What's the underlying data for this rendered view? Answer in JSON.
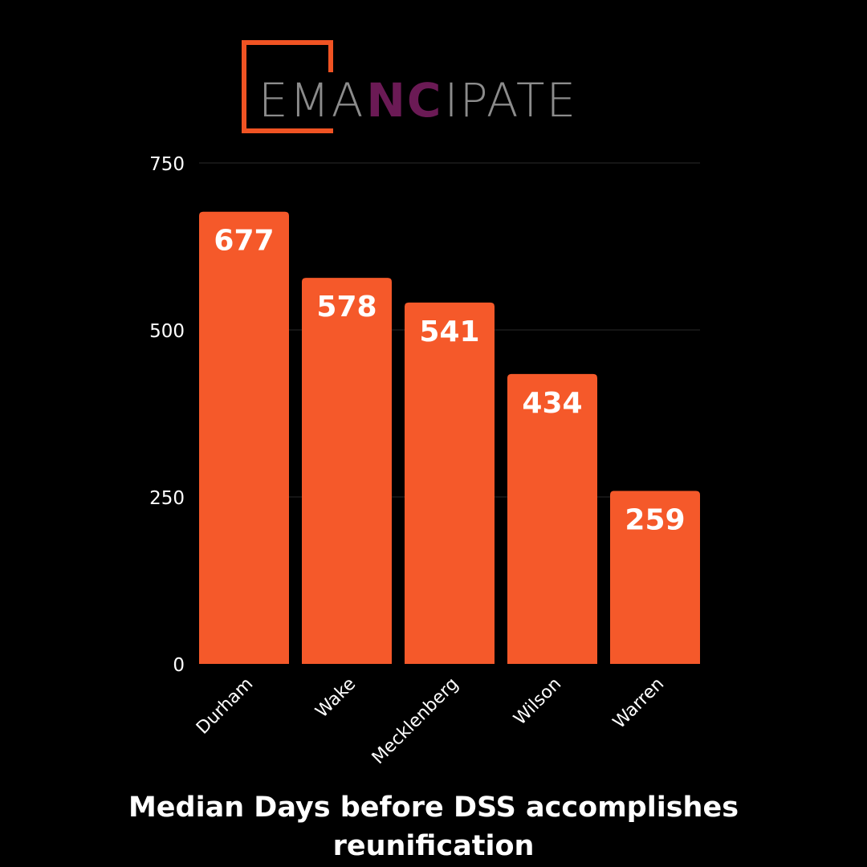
{
  "logo": {
    "part1": "EMA",
    "part2": "NC",
    "part3": "IPATE",
    "colors": {
      "bracket": "#F05323",
      "gray": "#8c8c8c",
      "accent": "#6b1a55"
    }
  },
  "chart_data": {
    "type": "bar",
    "title": "Median Days before DSS accomplishes reunification",
    "categories": [
      "Durham",
      "Wake",
      "Mecklenberg",
      "Wilson",
      "Warren"
    ],
    "values": [
      677,
      578,
      541,
      434,
      259
    ],
    "ylim": [
      0,
      750
    ],
    "yticks": [
      0,
      250,
      500,
      750
    ],
    "grid": true,
    "bar_color": "#F5592A",
    "data_label_color": "#ffffff",
    "axis_text_color": "#ffffff"
  }
}
